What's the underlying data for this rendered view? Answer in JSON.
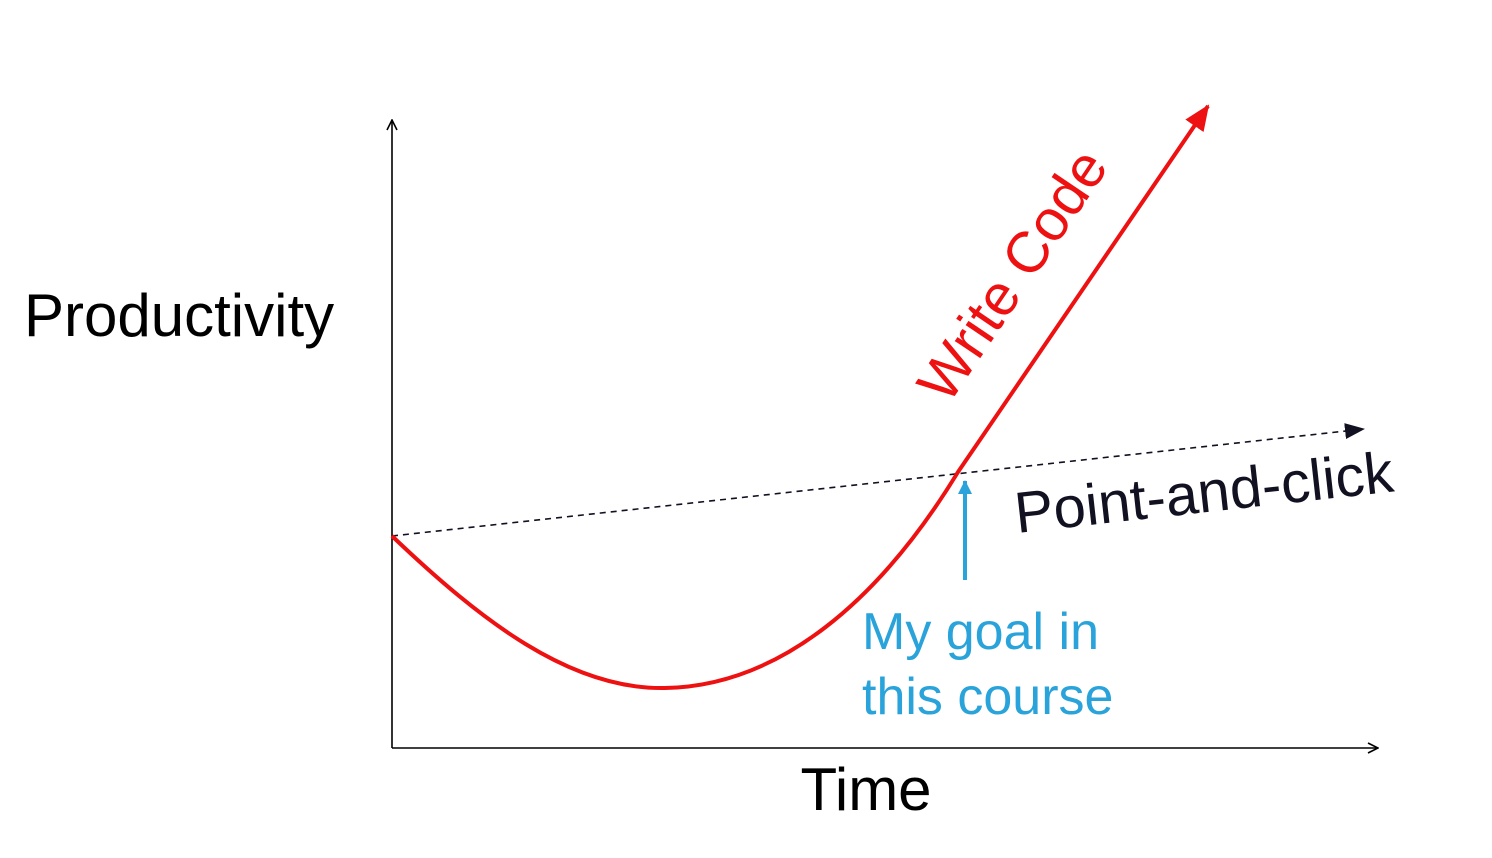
{
  "ylabel": "Productivity",
  "xlabel": "Time",
  "series": [
    {
      "label": "Write Code",
      "color": "#ee1111",
      "style": "solid"
    },
    {
      "label": "Point-and-click",
      "color": "#111122",
      "style": "dashed"
    }
  ],
  "annotation": {
    "line1": "My goal in",
    "line2": "this course",
    "color": "#29a3da"
  }
}
